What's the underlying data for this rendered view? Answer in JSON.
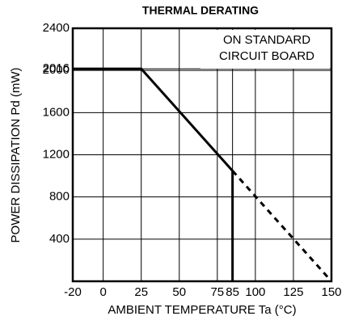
{
  "chart_data": {
    "type": "line",
    "title": "THERMAL DERATING",
    "xlabel": "AMBIENT TEMPERATURE Ta (°C)",
    "ylabel": "POWER DISSIPATION Pd (mW)",
    "annotations": [
      "ON STANDARD",
      "CIRCUIT BOARD"
    ],
    "xlim": [
      -20,
      150
    ],
    "ylim": [
      0,
      2400
    ],
    "xticks": [
      -20,
      0,
      25,
      50,
      75,
      85,
      100,
      125,
      150
    ],
    "yticks": [
      400,
      800,
      1200,
      1600,
      2000,
      2016,
      2400
    ],
    "grid": true,
    "series": [
      {
        "color": "#000000",
        "style": "solid",
        "x": [
          -20,
          25,
          85,
          85
        ],
        "values": [
          2016,
          2016,
          1048,
          0
        ]
      },
      {
        "color": "#000000",
        "style": "dashed",
        "x": [
          85,
          150
        ],
        "values": [
          1048,
          0
        ]
      }
    ]
  }
}
